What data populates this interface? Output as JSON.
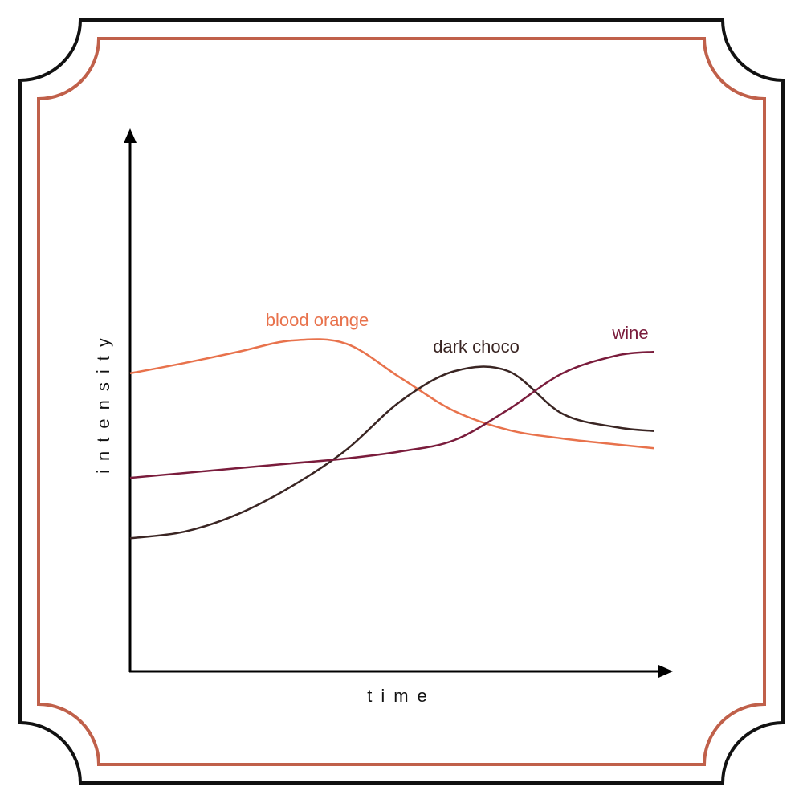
{
  "chart_data": {
    "type": "line",
    "x_label": "time",
    "y_label": "intensity",
    "x": [
      0,
      1,
      2,
      3,
      4,
      5,
      6,
      7,
      8,
      9,
      9.7
    ],
    "series": [
      {
        "name": "blood orange",
        "color": "#e8724c",
        "values": [
          55.3,
          57.2,
          59.3,
          61.4,
          60.8,
          54.5,
          48.3,
          44.8,
          43.2,
          42.1,
          41.4
        ]
      },
      {
        "name": "dark choco",
        "color": "#3a2523",
        "values": [
          24.7,
          25.9,
          29.2,
          34.4,
          41.1,
          50.1,
          55.7,
          55.7,
          47.8,
          45.3,
          44.6
        ]
      },
      {
        "name": "wine",
        "color": "#7a1c3c",
        "values": [
          35.9,
          36.8,
          37.7,
          38.6,
          39.5,
          40.8,
          42.9,
          48.6,
          55.3,
          58.6,
          59.3
        ]
      }
    ],
    "xlim": [
      0,
      10
    ],
    "ylim": [
      0,
      100
    ],
    "grid": false
  }
}
